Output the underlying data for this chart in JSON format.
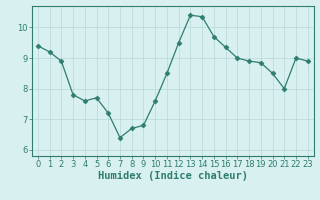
{
  "xlabel": "Humidex (Indice chaleur)",
  "ylabel": "",
  "x": [
    0,
    1,
    2,
    3,
    4,
    5,
    6,
    7,
    8,
    9,
    10,
    11,
    12,
    13,
    14,
    15,
    16,
    17,
    18,
    19,
    20,
    21,
    22,
    23
  ],
  "y": [
    9.4,
    9.2,
    8.9,
    7.8,
    7.6,
    7.7,
    7.2,
    6.4,
    6.7,
    6.8,
    7.6,
    8.5,
    9.5,
    10.4,
    10.35,
    9.7,
    9.35,
    9.0,
    8.9,
    8.85,
    8.5,
    8.0,
    9.0,
    8.9
  ],
  "line_color": "#2e7d6e",
  "marker": "D",
  "marker_size": 2.5,
  "bg_color": "#d8f0f0",
  "grid_color": "#b8d8d8",
  "axes_color": "#2e7d6e",
  "ylim": [
    5.8,
    10.7
  ],
  "xlim": [
    -0.5,
    23.5
  ],
  "yticks": [
    6,
    7,
    8,
    9,
    10
  ],
  "xticks": [
    0,
    1,
    2,
    3,
    4,
    5,
    6,
    7,
    8,
    9,
    10,
    11,
    12,
    13,
    14,
    15,
    16,
    17,
    18,
    19,
    20,
    21,
    22,
    23
  ],
  "tick_fontsize": 6,
  "label_fontsize": 7.5
}
